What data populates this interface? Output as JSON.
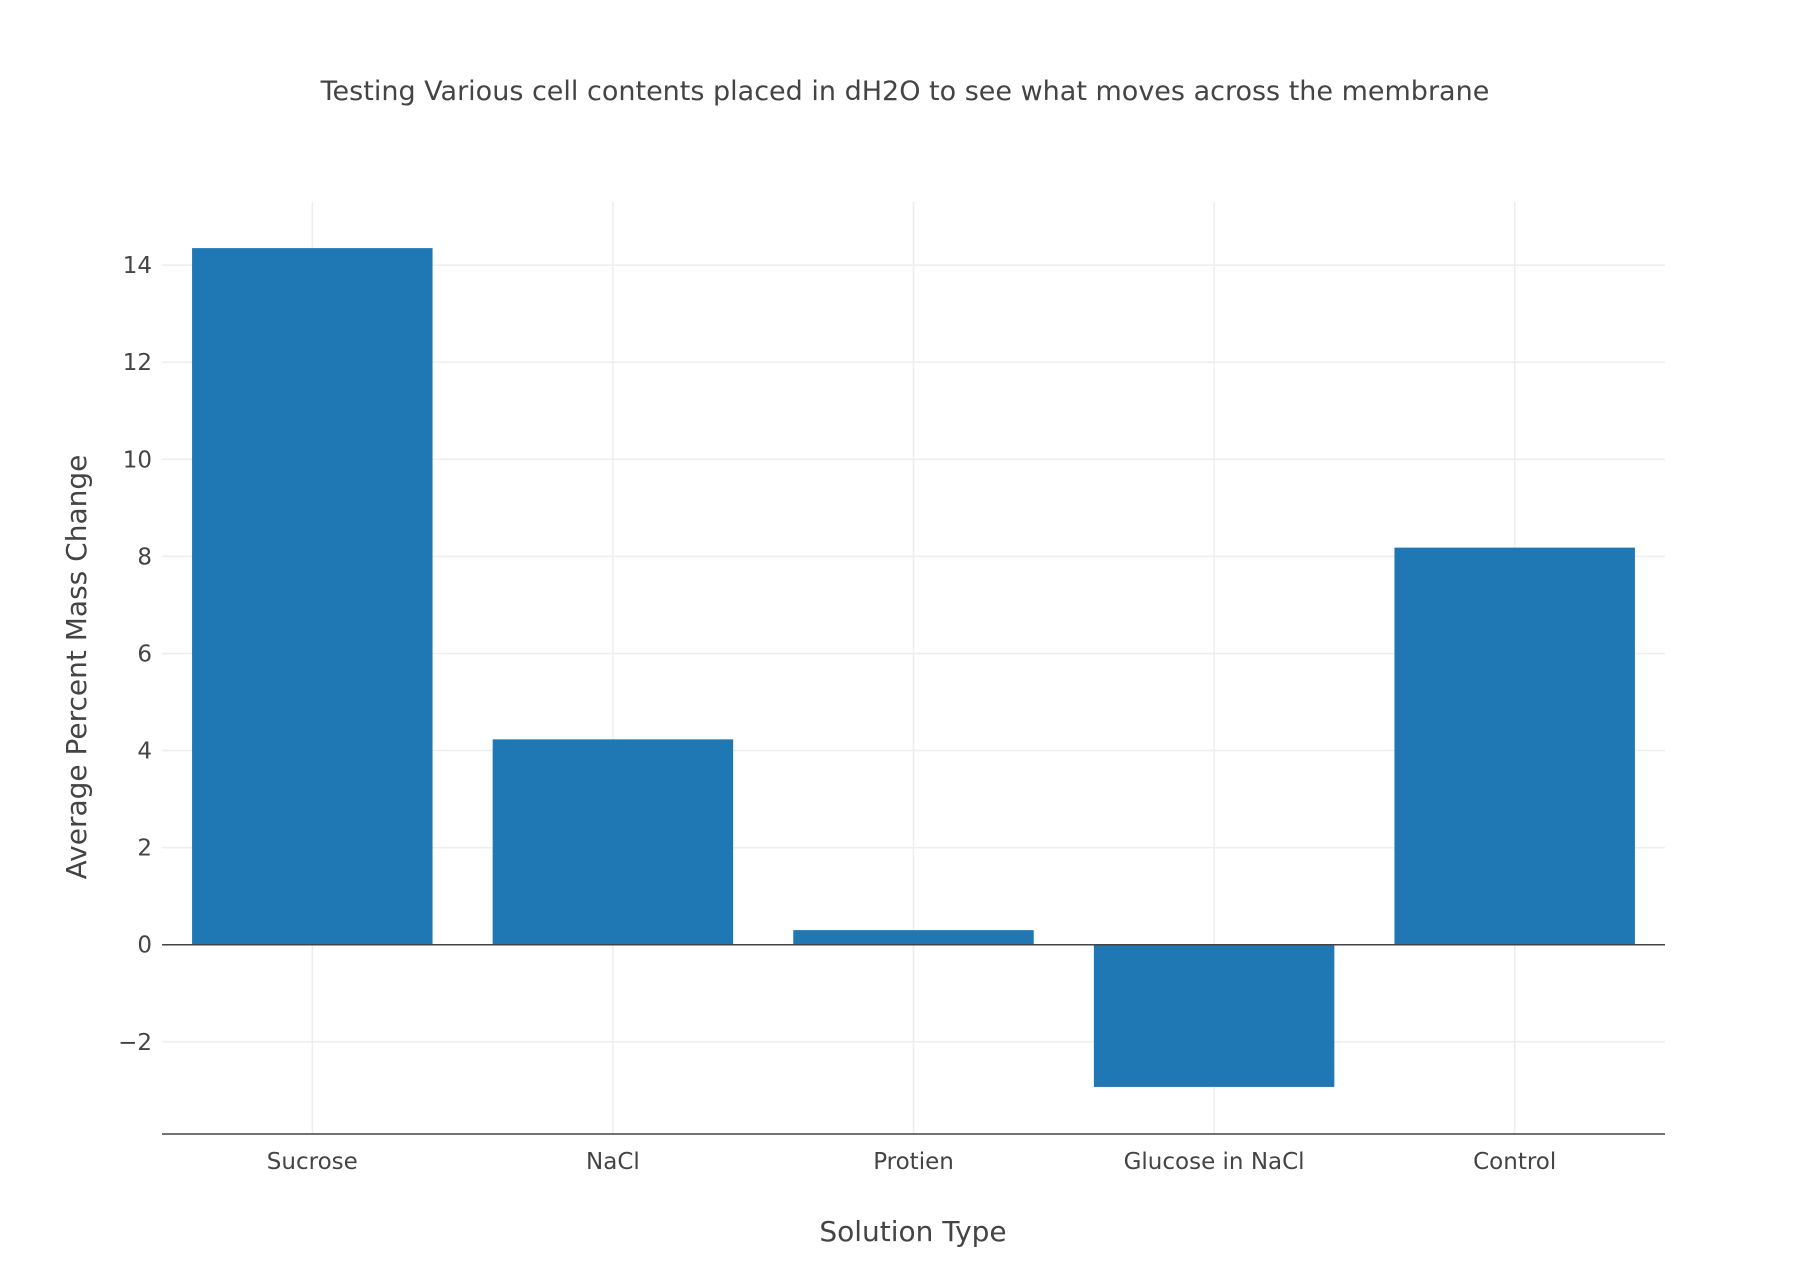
{
  "chart_data": {
    "type": "bar",
    "title": "Testing Various cell contents placed in dH2O to see what moves across the membrane",
    "xlabel": "Solution Type",
    "ylabel": "Average Percent Mass Change",
    "categories": [
      "Sucrose",
      "NaCl",
      "Protien",
      "Glucose in NaCl",
      "Control"
    ],
    "values": [
      14.35,
      4.23,
      0.3,
      -2.93,
      8.18
    ],
    "ylim": [
      -3.9,
      15.3
    ],
    "yticks": [
      -2,
      0,
      2,
      4,
      6,
      8,
      10,
      12,
      14
    ],
    "ytick_labels": [
      "−2",
      "0",
      "2",
      "4",
      "6",
      "8",
      "10",
      "12",
      "14"
    ],
    "bar_color": "#1f77b4",
    "grid": true,
    "legend": "none"
  }
}
